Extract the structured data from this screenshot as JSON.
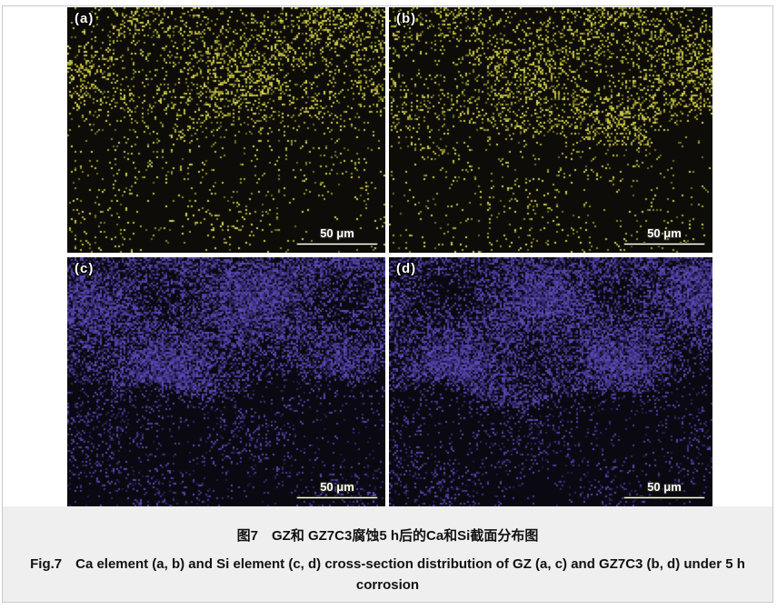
{
  "page": {
    "background": "#ffffff",
    "border_color": "#c9c9c9",
    "caption_background": "#efefef"
  },
  "figure": {
    "scale_bar_label": "50 μm",
    "ca_palette": [
      "#6f6f22",
      "#8f8f2c",
      "#aaaa35",
      "#c6c243",
      "#d8d452"
    ],
    "si_palette": [
      "#251d50",
      "#34296c",
      "#423488",
      "#4f3fa0",
      "#5b49b4"
    ],
    "panels": [
      {
        "id": "a",
        "label": "(a)",
        "element": "Ca",
        "sample": "GZ"
      },
      {
        "id": "b",
        "label": "(b)",
        "element": "Ca",
        "sample": "GZ7C3"
      },
      {
        "id": "c",
        "label": "(c)",
        "element": "Si",
        "sample": "GZ"
      },
      {
        "id": "d",
        "label": "(d)",
        "element": "Si",
        "sample": "GZ7C3"
      }
    ]
  },
  "caption": {
    "zh": "图7　GZ和 GZ7C3腐蚀5 h后的Ca和Si截面分布图",
    "en": "Fig.7　Ca element (a, b) and Si element (c, d) cross-section distribution of GZ (a, c) and GZ7C3 (b, d) under 5 h corrosion"
  }
}
